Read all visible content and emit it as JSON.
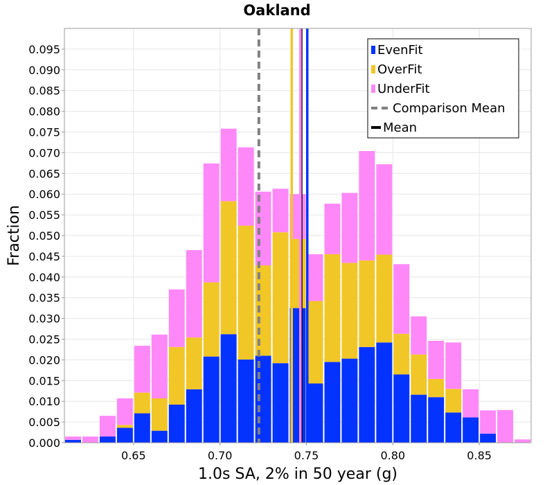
{
  "chart_data": {
    "type": "bar",
    "stacked": true,
    "title": "Oakland",
    "xlabel": "1.0s SA, 2% in 50 year (g)",
    "ylabel": "Fraction",
    "xlim": [
      0.61,
      0.88
    ],
    "ylim": [
      0.0,
      0.1
    ],
    "x_ticks": [
      "0.65",
      "0.70",
      "0.75",
      "0.80",
      "0.85"
    ],
    "x_tick_values": [
      0.65,
      0.7,
      0.75,
      0.8,
      0.85
    ],
    "y_ticks": [
      "0.000",
      "0.005",
      "0.010",
      "0.015",
      "0.020",
      "0.025",
      "0.030",
      "0.035",
      "0.040",
      "0.045",
      "0.050",
      "0.055",
      "0.060",
      "0.065",
      "0.070",
      "0.075",
      "0.080",
      "0.085",
      "0.090",
      "0.095"
    ],
    "y_tick_values": [
      0.0,
      0.005,
      0.01,
      0.015,
      0.02,
      0.025,
      0.03,
      0.035,
      0.04,
      0.045,
      0.05,
      0.055,
      0.06,
      0.065,
      0.07,
      0.075,
      0.08,
      0.085,
      0.09,
      0.095
    ],
    "grid": true,
    "legend_position": "top-right",
    "bin_width": 0.01,
    "x": [
      0.615,
      0.625,
      0.635,
      0.645,
      0.655,
      0.665,
      0.675,
      0.685,
      0.695,
      0.705,
      0.715,
      0.725,
      0.735,
      0.745,
      0.755,
      0.765,
      0.775,
      0.785,
      0.795,
      0.805,
      0.815,
      0.825,
      0.835,
      0.845,
      0.855,
      0.865,
      0.875
    ],
    "series": [
      {
        "name": "EvenFit",
        "color": "#0433ff",
        "values": [
          0.0007,
          0.0,
          0.0015,
          0.0036,
          0.0071,
          0.0029,
          0.0092,
          0.0129,
          0.0208,
          0.0262,
          0.0201,
          0.021,
          0.0192,
          0.0325,
          0.0143,
          0.0195,
          0.0203,
          0.0231,
          0.0242,
          0.0165,
          0.0116,
          0.011,
          0.0073,
          0.0061,
          0.0022,
          0.0,
          0.0
        ]
      },
      {
        "name": "OverFit",
        "color": "#f1c627",
        "values": [
          0.0,
          0.0,
          0.0,
          0.0007,
          0.005,
          0.0078,
          0.0139,
          0.0125,
          0.0179,
          0.0321,
          0.0323,
          0.0218,
          0.0316,
          0.0167,
          0.0199,
          0.026,
          0.0231,
          0.0209,
          0.0212,
          0.0098,
          0.0097,
          0.0044,
          0.0057,
          0.0,
          0.0,
          0.0,
          0.0
        ]
      },
      {
        "name": "UnderFit",
        "color": "#fe88f8",
        "values": [
          0.0008,
          0.0015,
          0.005,
          0.0064,
          0.0113,
          0.0154,
          0.0139,
          0.0211,
          0.0287,
          0.0175,
          0.0189,
          0.0178,
          0.0105,
          0.0108,
          0.0113,
          0.0122,
          0.0169,
          0.0264,
          0.0218,
          0.0168,
          0.0092,
          0.0092,
          0.0112,
          0.0068,
          0.0056,
          0.0079,
          0.0008
        ]
      }
    ],
    "vertical_lines": [
      {
        "name": "Comparison Mean",
        "x": 0.7225,
        "color": "#808080",
        "style": "dashed",
        "in_legend": true
      },
      {
        "name": "Mean",
        "x": 0.747,
        "color": "#000000",
        "style": "solid",
        "in_legend": true
      },
      {
        "name": "OverFit mean",
        "x": 0.7415,
        "color": "#f1c627",
        "style": "solid",
        "in_legend": false
      },
      {
        "name": "EvenFit mean",
        "x": 0.7505,
        "color": "#0433ff",
        "style": "solid",
        "in_legend": false
      },
      {
        "name": "UnderFit mean",
        "x": 0.7465,
        "color": "#fe88f8",
        "style": "solid",
        "in_legend": false
      }
    ]
  },
  "legend": {
    "items": [
      {
        "label": "EvenFit",
        "kind": "swatch",
        "color": "#0433ff"
      },
      {
        "label": "OverFit",
        "kind": "swatch",
        "color": "#f1c627"
      },
      {
        "label": "UnderFit",
        "kind": "swatch",
        "color": "#fe88f8"
      },
      {
        "label": "Comparison Mean",
        "kind": "dashed-line",
        "color": "#808080"
      },
      {
        "label": "Mean",
        "kind": "solid-line",
        "color": "#000000"
      }
    ]
  }
}
